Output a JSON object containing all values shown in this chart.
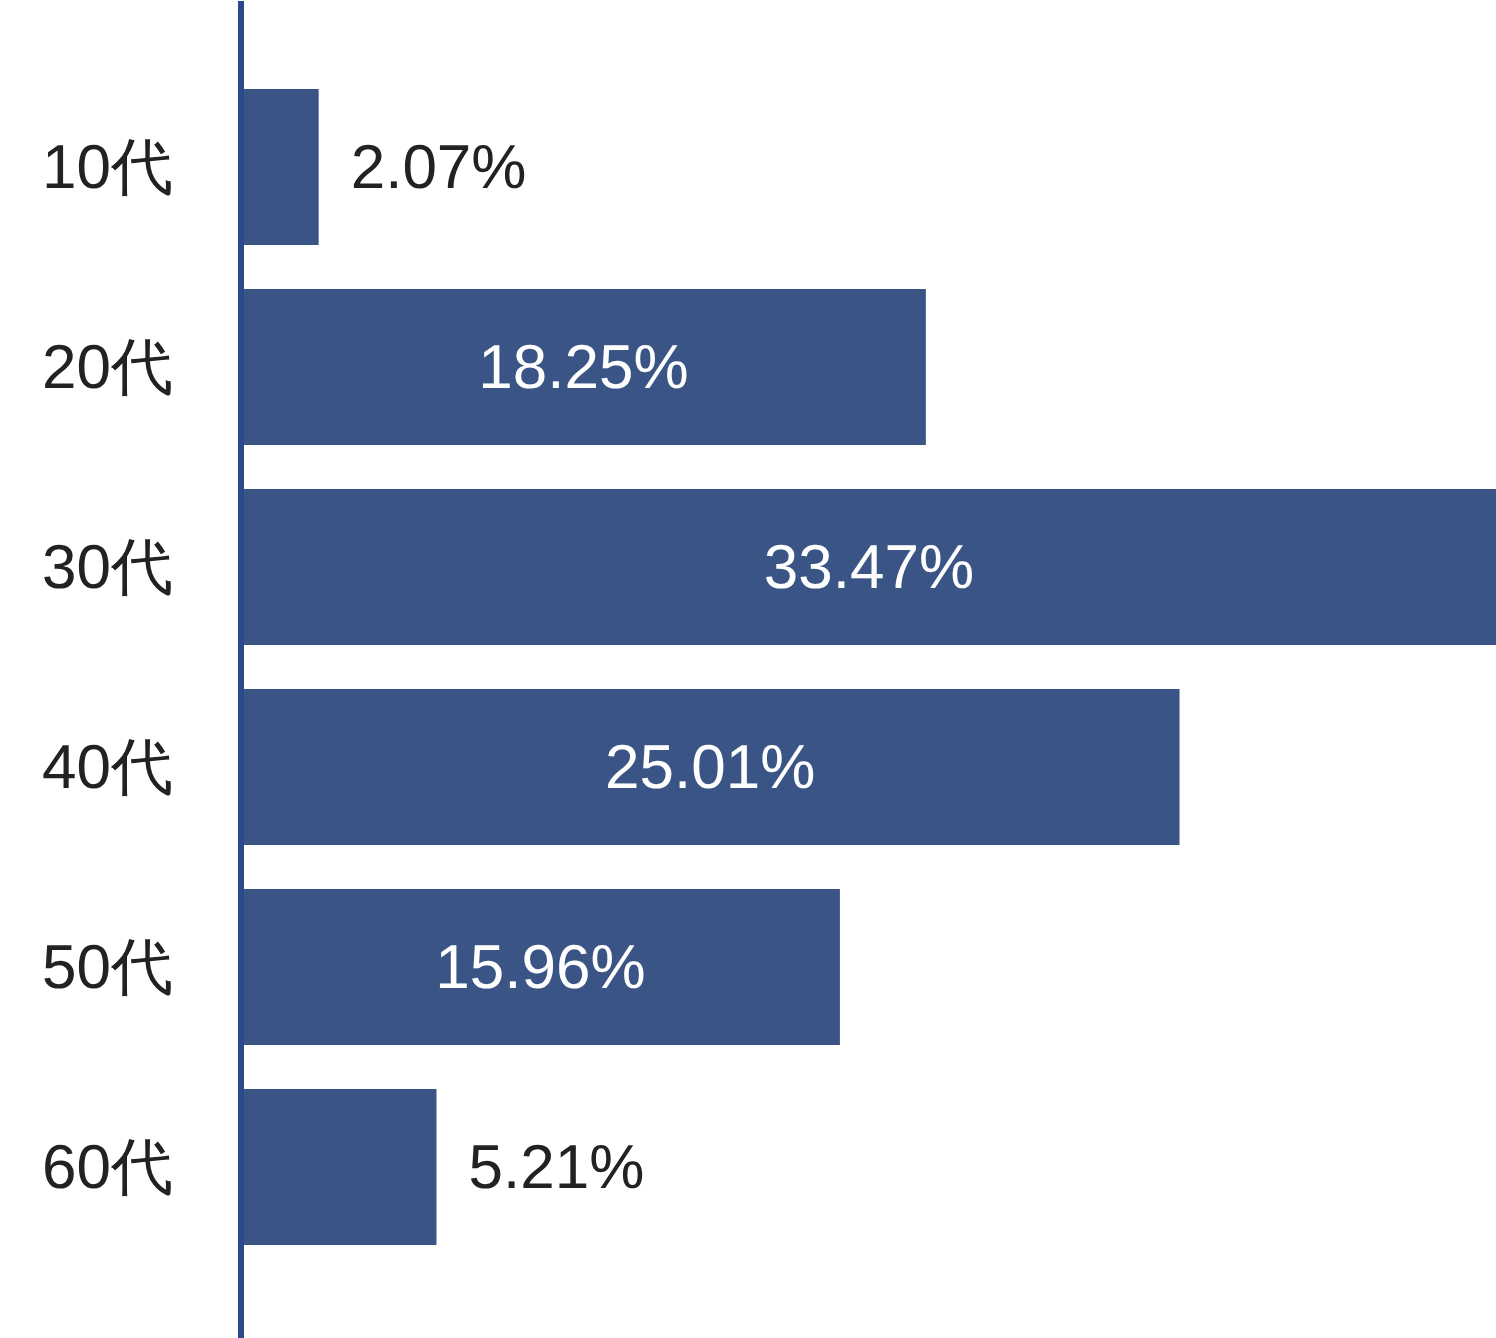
{
  "chart_data": {
    "type": "bar",
    "orientation": "horizontal",
    "categories": [
      "10代",
      "20代",
      "30代",
      "40代",
      "50代",
      "60代"
    ],
    "values": [
      2.07,
      18.25,
      33.47,
      25.01,
      15.96,
      5.21
    ],
    "value_labels": [
      "2.07%",
      "18.25%",
      "33.47%",
      "25.01%",
      "15.96%",
      "5.21%"
    ],
    "color": "#3a5585"
  }
}
